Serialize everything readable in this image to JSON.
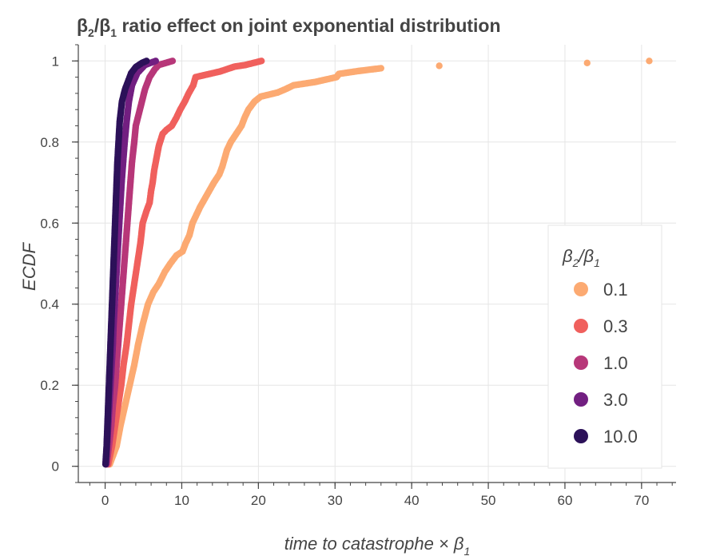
{
  "chart_data": {
    "type": "scatter",
    "title_main": "β",
    "title_sub1": "2",
    "title_mid": "/β",
    "title_sub2": "1",
    "title_rest": " ratio effect on joint exponential distribution",
    "xlabel_main": "time to catastrophe × β",
    "xlabel_sub": "1",
    "ylabel": "ECDF",
    "xlim": [
      -3.5,
      74.5
    ],
    "ylim": [
      -0.04,
      1.04
    ],
    "xticks": [
      0,
      10,
      20,
      30,
      40,
      50,
      60,
      70
    ],
    "xtick_labels": [
      "0",
      "10",
      "20",
      "30",
      "40",
      "50",
      "60",
      "70"
    ],
    "yticks": [
      0,
      0.2,
      0.4,
      0.6,
      0.8,
      1
    ],
    "ytick_labels": [
      "0",
      "0.2",
      "0.4",
      "0.6",
      "0.8",
      "1"
    ],
    "grid": true,
    "legend": {
      "placement": "right",
      "title_main": "β",
      "title_sub1": "2",
      "title_mid": "/β",
      "title_sub2": "1"
    },
    "series": [
      {
        "name": "0.1",
        "color": "#fcaa72",
        "points": [
          [
            0.6,
            0.005
          ],
          [
            1.5,
            0.05
          ],
          [
            2.0,
            0.1
          ],
          [
            2.6,
            0.15
          ],
          [
            3.2,
            0.2
          ],
          [
            3.8,
            0.25
          ],
          [
            4.3,
            0.3
          ],
          [
            4.9,
            0.35
          ],
          [
            5.6,
            0.4
          ],
          [
            6.3,
            0.43
          ],
          [
            7.0,
            0.45
          ],
          [
            7.8,
            0.48
          ],
          [
            8.5,
            0.5
          ],
          [
            9.3,
            0.52
          ],
          [
            10.1,
            0.53
          ],
          [
            10.5,
            0.55
          ],
          [
            11.0,
            0.57
          ],
          [
            11.4,
            0.6
          ],
          [
            11.9,
            0.62
          ],
          [
            12.4,
            0.64
          ],
          [
            13.0,
            0.66
          ],
          [
            13.6,
            0.68
          ],
          [
            14.2,
            0.7
          ],
          [
            14.9,
            0.72
          ],
          [
            15.3,
            0.74
          ],
          [
            15.6,
            0.76
          ],
          [
            15.9,
            0.78
          ],
          [
            16.4,
            0.8
          ],
          [
            17.1,
            0.82
          ],
          [
            17.8,
            0.84
          ],
          [
            18.2,
            0.86
          ],
          [
            18.7,
            0.88
          ],
          [
            19.5,
            0.9
          ],
          [
            20.3,
            0.912
          ],
          [
            22.5,
            0.922
          ],
          [
            23.5,
            0.93
          ],
          [
            24.6,
            0.94
          ],
          [
            27.4,
            0.948
          ],
          [
            30.2,
            0.96
          ],
          [
            30.5,
            0.968
          ],
          [
            33.0,
            0.975
          ],
          [
            36.0,
            0.982
          ],
          [
            43.6,
            0.988
          ],
          [
            62.9,
            0.995
          ],
          [
            71.0,
            1.0
          ]
        ]
      },
      {
        "name": "0.3",
        "color": "#f0605d",
        "points": [
          [
            0.4,
            0.005
          ],
          [
            0.9,
            0.05
          ],
          [
            1.3,
            0.1
          ],
          [
            1.7,
            0.15
          ],
          [
            2.1,
            0.2
          ],
          [
            2.4,
            0.25
          ],
          [
            2.8,
            0.3
          ],
          [
            3.1,
            0.35
          ],
          [
            3.4,
            0.4
          ],
          [
            3.8,
            0.45
          ],
          [
            4.2,
            0.5
          ],
          [
            4.6,
            0.55
          ],
          [
            4.9,
            0.6
          ],
          [
            5.4,
            0.63
          ],
          [
            5.8,
            0.65
          ],
          [
            6.0,
            0.68
          ],
          [
            6.2,
            0.7
          ],
          [
            6.4,
            0.73
          ],
          [
            6.7,
            0.76
          ],
          [
            7.0,
            0.79
          ],
          [
            7.5,
            0.82
          ],
          [
            8.0,
            0.83
          ],
          [
            8.7,
            0.84
          ],
          [
            9.3,
            0.86
          ],
          [
            9.8,
            0.88
          ],
          [
            10.4,
            0.9
          ],
          [
            10.9,
            0.92
          ],
          [
            11.5,
            0.94
          ],
          [
            11.8,
            0.96
          ],
          [
            15.0,
            0.974
          ],
          [
            16.9,
            0.986
          ],
          [
            18.3,
            0.99
          ],
          [
            20.4,
            1.0
          ]
        ]
      },
      {
        "name": "1.0",
        "color": "#b73779",
        "points": [
          [
            0.2,
            0.005
          ],
          [
            0.5,
            0.05
          ],
          [
            0.8,
            0.1
          ],
          [
            1.0,
            0.15
          ],
          [
            1.3,
            0.2
          ],
          [
            1.5,
            0.25
          ],
          [
            1.7,
            0.3
          ],
          [
            1.9,
            0.35
          ],
          [
            2.1,
            0.4
          ],
          [
            2.3,
            0.45
          ],
          [
            2.5,
            0.5
          ],
          [
            2.7,
            0.55
          ],
          [
            2.9,
            0.6
          ],
          [
            3.1,
            0.65
          ],
          [
            3.3,
            0.7
          ],
          [
            3.5,
            0.75
          ],
          [
            3.8,
            0.8
          ],
          [
            4.0,
            0.84
          ],
          [
            4.4,
            0.87
          ],
          [
            4.8,
            0.9
          ],
          [
            5.2,
            0.93
          ],
          [
            5.8,
            0.96
          ],
          [
            6.5,
            0.98
          ],
          [
            7.0,
            0.99
          ],
          [
            8.8,
            1.0
          ]
        ]
      },
      {
        "name": "3.0",
        "color": "#721f81",
        "points": [
          [
            0.1,
            0.005
          ],
          [
            0.25,
            0.05
          ],
          [
            0.4,
            0.1
          ],
          [
            0.55,
            0.15
          ],
          [
            0.7,
            0.2
          ],
          [
            0.85,
            0.25
          ],
          [
            1.0,
            0.3
          ],
          [
            1.1,
            0.35
          ],
          [
            1.25,
            0.4
          ],
          [
            1.4,
            0.45
          ],
          [
            1.55,
            0.5
          ],
          [
            1.7,
            0.55
          ],
          [
            1.85,
            0.6
          ],
          [
            2.0,
            0.65
          ],
          [
            2.15,
            0.7
          ],
          [
            2.35,
            0.75
          ],
          [
            2.55,
            0.8
          ],
          [
            2.8,
            0.85
          ],
          [
            3.1,
            0.9
          ],
          [
            3.5,
            0.94
          ],
          [
            4.2,
            0.97
          ],
          [
            5.2,
            0.99
          ],
          [
            6.6,
            1.0
          ]
        ]
      },
      {
        "name": "10.0",
        "color": "#2c1159",
        "points": [
          [
            0.05,
            0.005
          ],
          [
            0.2,
            0.05
          ],
          [
            0.3,
            0.1
          ],
          [
            0.4,
            0.15
          ],
          [
            0.5,
            0.2
          ],
          [
            0.6,
            0.25
          ],
          [
            0.7,
            0.3
          ],
          [
            0.8,
            0.35
          ],
          [
            0.9,
            0.4
          ],
          [
            1.0,
            0.45
          ],
          [
            1.1,
            0.5
          ],
          [
            1.2,
            0.55
          ],
          [
            1.3,
            0.6
          ],
          [
            1.4,
            0.65
          ],
          [
            1.5,
            0.7
          ],
          [
            1.6,
            0.75
          ],
          [
            1.75,
            0.8
          ],
          [
            1.9,
            0.85
          ],
          [
            2.2,
            0.9
          ],
          [
            2.6,
            0.93
          ],
          [
            3.0,
            0.95
          ],
          [
            3.4,
            0.97
          ],
          [
            4.0,
            0.985
          ],
          [
            4.8,
            0.995
          ],
          [
            5.4,
            1.0
          ]
        ]
      }
    ]
  }
}
